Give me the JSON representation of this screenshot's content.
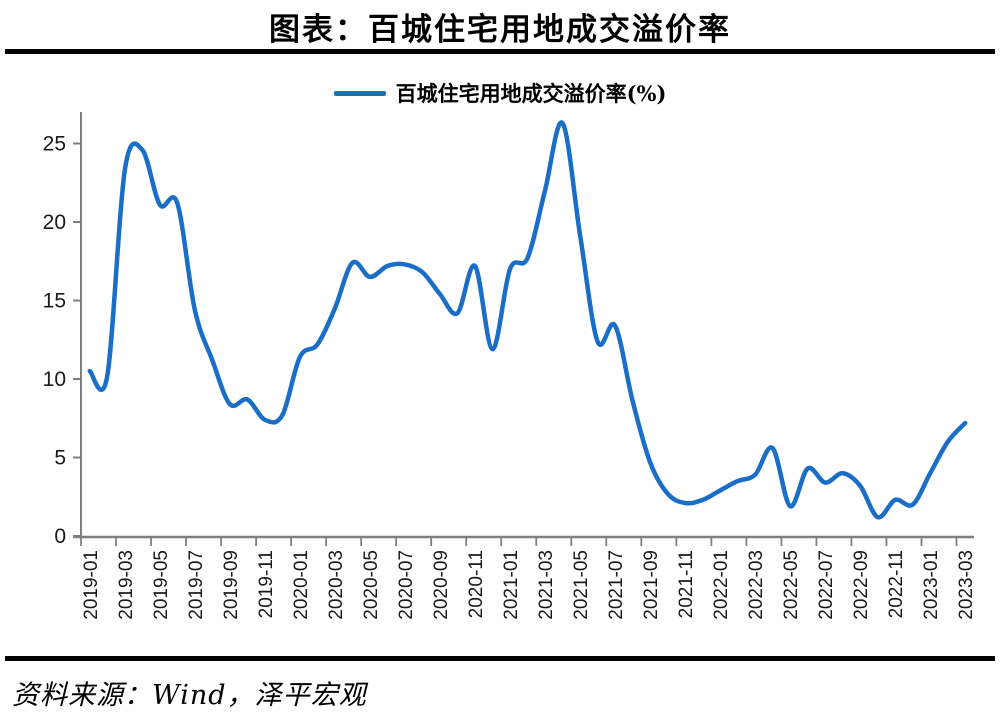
{
  "title": "图表：百城住宅用地成交溢价率",
  "legend": {
    "label": "百城住宅用地成交溢价率(%)"
  },
  "source": "资料来源：Wind，泽平宏观",
  "chart_data": {
    "type": "line",
    "title": "图表：百城住宅用地成交溢价率",
    "series_name": "百城住宅用地成交溢价率(%)",
    "x": [
      "2019-01",
      "2019-02",
      "2019-03",
      "2019-04",
      "2019-05",
      "2019-06",
      "2019-07",
      "2019-08",
      "2019-09",
      "2019-10",
      "2019-11",
      "2019-12",
      "2020-01",
      "2020-02",
      "2020-03",
      "2020-04",
      "2020-05",
      "2020-06",
      "2020-07",
      "2020-08",
      "2020-09",
      "2020-10",
      "2020-11",
      "2020-12",
      "2021-01",
      "2021-02",
      "2021-03",
      "2021-04",
      "2021-05",
      "2021-06",
      "2021-07",
      "2021-08",
      "2021-09",
      "2021-10",
      "2021-11",
      "2021-12",
      "2022-01",
      "2022-02",
      "2022-03",
      "2022-04",
      "2022-05",
      "2022-06",
      "2022-07",
      "2022-08",
      "2022-09",
      "2022-10",
      "2022-11",
      "2022-12",
      "2023-01",
      "2023-02",
      "2023-03"
    ],
    "values": [
      10.5,
      10.2,
      23.3,
      24.6,
      21.1,
      21.2,
      14.4,
      11.2,
      8.4,
      8.7,
      7.4,
      7.7,
      11.4,
      12.2,
      14.5,
      17.4,
      16.5,
      17.2,
      17.3,
      16.8,
      15.4,
      14.2,
      17.2,
      11.9,
      17.0,
      17.7,
      22.0,
      26.3,
      19.2,
      12.4,
      13.4,
      8.6,
      4.7,
      2.7,
      2.1,
      2.3,
      2.9,
      3.5,
      3.9,
      5.6,
      1.9,
      4.3,
      3.4,
      4.0,
      3.2,
      1.2,
      2.3,
      2.0,
      4.0,
      6.0,
      7.2
    ],
    "x_tick_labels": [
      "2019-01",
      "2019-03",
      "2019-05",
      "2019-07",
      "2019-09",
      "2019-11",
      "2020-01",
      "2020-03",
      "2020-05",
      "2020-07",
      "2020-09",
      "2020-11",
      "2021-01",
      "2021-03",
      "2021-05",
      "2021-07",
      "2021-09",
      "2021-11",
      "2022-01",
      "2022-03",
      "2022-05",
      "2022-07",
      "2022-09",
      "2022-11",
      "2023-01",
      "2023-03"
    ],
    "y_ticks": [
      0,
      5,
      10,
      15,
      20,
      25
    ],
    "ylim": [
      0,
      27
    ],
    "xlabel": "",
    "ylabel": "",
    "grid": false,
    "smooth": true,
    "legend_position": "top-center",
    "line_color": "#1B6EC8",
    "axis_color": "#7F7F7F",
    "tick_label_color": "#1a1a1a"
  }
}
